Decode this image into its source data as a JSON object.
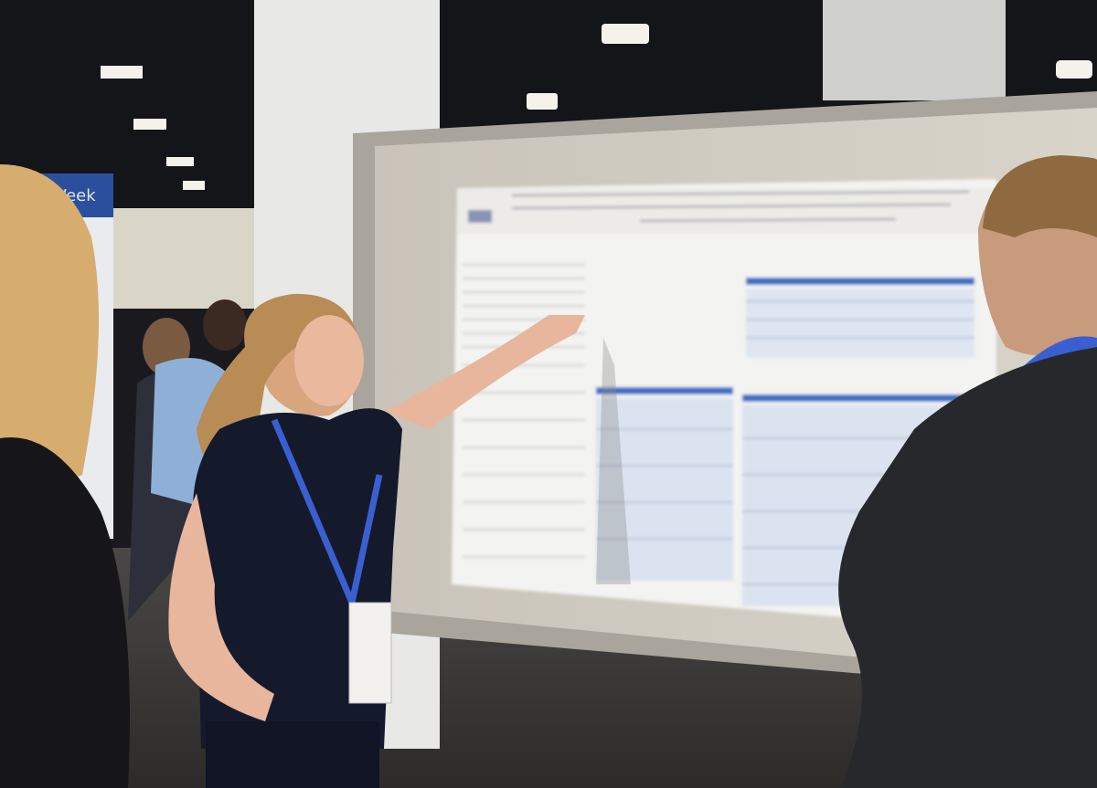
{
  "banner": {
    "text": "Week"
  }
}
